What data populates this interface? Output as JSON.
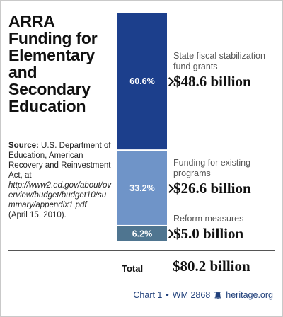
{
  "title": "ARRA Funding for Elementary and Secondary Education",
  "source": {
    "label": "Source:",
    "text": "U.S. Department of Education, American Recovery and Reinvestment Act, at",
    "url": "http://www2.ed.gov/about/overview/budget/budget10/summary/appendix1.pdf",
    "date": "(April 15, 2010)."
  },
  "chart_data": {
    "type": "bar",
    "stacked": true,
    "categories": [
      "State fiscal stabilization fund grants",
      "Funding for existing programs",
      "Reform measures"
    ],
    "percent_labels": [
      "60.6%",
      "33.2%",
      "6.2%"
    ],
    "value_labels": [
      "$48.6 billion",
      "$26.6 billion",
      "$5.0 billion"
    ],
    "values": [
      48.6,
      26.6,
      5.0
    ],
    "percents": [
      60.6,
      33.2,
      6.2
    ],
    "unit": "billion",
    "colors": [
      "#1c3f8c",
      "#6f94c8",
      "#4f7590"
    ],
    "total_label": "Total",
    "total_value": "$80.2 billion"
  },
  "footer": {
    "chart_ref": "Chart 1",
    "separator": "•",
    "wm": "WM 2868",
    "site": "heritage.org",
    "accent": "#1f3f7a"
  }
}
